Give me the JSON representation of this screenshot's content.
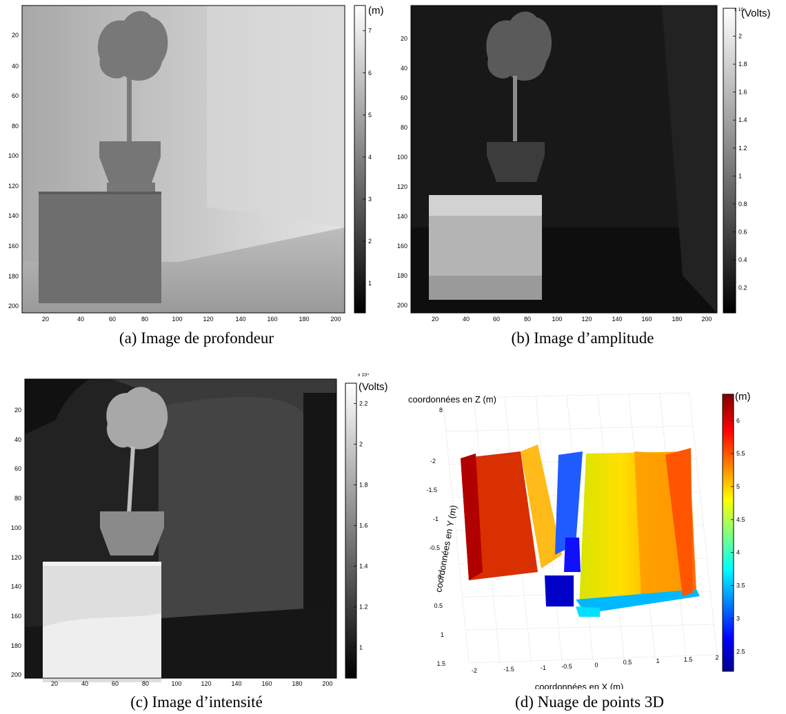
{
  "chart_data": [
    {
      "type": "heatmap",
      "caption": "(a) Image de profondeur",
      "colormap": "gray",
      "xticks": [
        "20",
        "40",
        "60",
        "80",
        "100",
        "120",
        "140",
        "160",
        "180",
        "200"
      ],
      "yticks": [
        "20",
        "40",
        "60",
        "80",
        "100",
        "120",
        "140",
        "160",
        "180",
        "200"
      ],
      "colorbar": {
        "unit": "(m)",
        "exponent": "",
        "ticks": [
          "1",
          "2",
          "3",
          "4",
          "5",
          "6",
          "7"
        ],
        "range": [
          0.3,
          7.6
        ]
      }
    },
    {
      "type": "heatmap",
      "caption": "(b) Image d’amplitude",
      "colormap": "gray",
      "xticks": [
        "20",
        "40",
        "60",
        "80",
        "100",
        "120",
        "140",
        "160",
        "180",
        "200"
      ],
      "yticks": [
        "20",
        "40",
        "60",
        "80",
        "100",
        "120",
        "140",
        "160",
        "180",
        "200"
      ],
      "colorbar": {
        "unit": "(Volts)",
        "exponent": "x 10⁴",
        "ticks": [
          "0.2",
          "0.4",
          "0.6",
          "0.8",
          "1",
          "1.2",
          "1.4",
          "1.6",
          "1.8",
          "2"
        ],
        "range": [
          0.02,
          2.2
        ]
      }
    },
    {
      "type": "heatmap",
      "caption": "(c) Image d’intensité",
      "colormap": "gray",
      "xticks": [
        "20",
        "40",
        "60",
        "80",
        "100",
        "120",
        "140",
        "160",
        "180",
        "200"
      ],
      "yticks": [
        "20",
        "40",
        "60",
        "80",
        "100",
        "120",
        "140",
        "160",
        "180",
        "200"
      ],
      "colorbar": {
        "unit": "(Volts)",
        "exponent": "x 10⁴",
        "ticks": [
          "1",
          "1.2",
          "1.4",
          "1.6",
          "1.8",
          "2",
          "2.2"
        ],
        "range": [
          0.85,
          2.3
        ]
      }
    },
    {
      "type": "scatter",
      "caption": "(d) Nuage de points 3D",
      "colormap": "jet",
      "xlabel": "coordonnées en X (m)",
      "ylabel": "coordonnées en Y (m)",
      "zlabel": "coordonnées en Z (m)",
      "xticks": [
        "-2",
        "-1.5",
        "-1",
        "-0.5",
        "0",
        "0.5",
        "1",
        "1.5",
        "2"
      ],
      "yticks": [
        "-2",
        "-1.5",
        "-1",
        "-0.5",
        "0",
        "0.5",
        "1",
        "1.5"
      ],
      "zticks": [
        "8"
      ],
      "colorbar": {
        "unit": "(m)",
        "ticks": [
          "2.5",
          "3",
          "3.5",
          "4",
          "4.5",
          "5",
          "5.5",
          "6"
        ],
        "range": [
          2.2,
          6.4
        ]
      }
    }
  ]
}
